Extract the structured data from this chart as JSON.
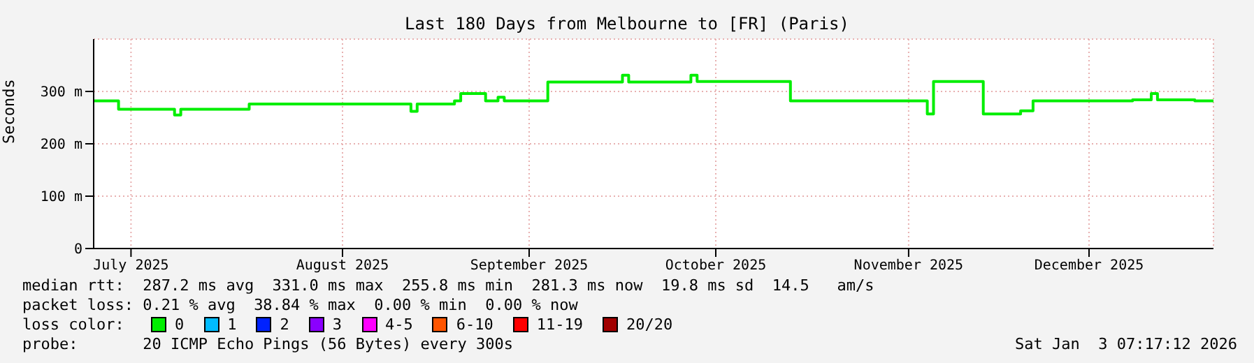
{
  "chart_data": {
    "type": "step",
    "title": "Last 180 Days from Melbourne to [FR] (Paris)",
    "ylabel": "Seconds",
    "x": [
      "2025-07-07",
      "2025-07-11",
      "2025-07-20",
      "2025-07-21",
      "2025-08-01",
      "2025-08-27",
      "2025-08-28",
      "2025-09-03",
      "2025-09-04",
      "2025-09-08",
      "2025-09-10",
      "2025-09-11",
      "2025-09-18",
      "2025-09-30",
      "2025-10-01",
      "2025-10-11",
      "2025-10-12",
      "2025-10-27",
      "2025-11-17",
      "2025-11-18",
      "2025-11-19",
      "2025-11-26",
      "2025-11-27",
      "2025-12-03",
      "2025-12-05",
      "2025-12-21",
      "2025-12-24",
      "2025-12-25",
      "2025-12-31",
      "2026-01-03"
    ],
    "series": [
      {
        "name": "0",
        "color": "#00ee00",
        "values": [
          282,
          266,
          255,
          266,
          276,
          262,
          276,
          282,
          296,
          282,
          289,
          282,
          318,
          331,
          318,
          331,
          319,
          282,
          282,
          257,
          319,
          319,
          257,
          263,
          282,
          284,
          296,
          284,
          282,
          282
        ]
      },
      {
        "name": "1",
        "color": "#00bbff",
        "values": [
          null,
          null,
          null,
          null,
          null,
          null,
          null,
          null,
          null,
          null,
          null,
          null,
          null,
          null,
          null,
          null,
          null,
          null,
          null,
          null,
          null,
          null,
          null,
          null,
          null,
          null,
          null,
          null,
          null,
          null
        ]
      },
      {
        "name": "2",
        "color": "#0022ff",
        "values": [
          null,
          null,
          null,
          null,
          null,
          null,
          null,
          null,
          null,
          null,
          null,
          null,
          null,
          null,
          null,
          null,
          null,
          null,
          null,
          null,
          null,
          null,
          null,
          null,
          null,
          null,
          null,
          null,
          null,
          null
        ]
      },
      {
        "name": "3",
        "color": "#8a00ff",
        "values": [
          null,
          null,
          null,
          null,
          null,
          null,
          null,
          null,
          null,
          null,
          null,
          null,
          null,
          null,
          null,
          null,
          null,
          null,
          null,
          null,
          null,
          null,
          null,
          null,
          null,
          null,
          null,
          null,
          null,
          null
        ]
      },
      {
        "name": "4-5",
        "color": "#ff00ff",
        "values": [
          null,
          null,
          null,
          null,
          null,
          null,
          null,
          null,
          null,
          null,
          null,
          null,
          null,
          null,
          null,
          null,
          null,
          null,
          null,
          null,
          null,
          null,
          null,
          null,
          null,
          null,
          null,
          null,
          null,
          null
        ]
      },
      {
        "name": "6-10",
        "color": "#ff5500",
        "values": [
          null,
          null,
          null,
          null,
          null,
          null,
          null,
          null,
          null,
          null,
          null,
          null,
          null,
          null,
          null,
          null,
          null,
          null,
          null,
          null,
          null,
          null,
          null,
          null,
          null,
          null,
          null,
          null,
          null,
          null
        ]
      },
      {
        "name": "11-19",
        "color": "#ff0000",
        "values": [
          null,
          null,
          null,
          null,
          null,
          null,
          null,
          null,
          null,
          null,
          null,
          null,
          null,
          null,
          null,
          null,
          null,
          null,
          null,
          null,
          null,
          null,
          null,
          null,
          null,
          null,
          null,
          null,
          null,
          null
        ]
      },
      {
        "name": "20/20",
        "color": "#a10000",
        "values": [
          null,
          null,
          null,
          null,
          null,
          null,
          null,
          null,
          null,
          null,
          null,
          null,
          null,
          null,
          null,
          null,
          null,
          null,
          null,
          null,
          null,
          null,
          null,
          null,
          null,
          null,
          null,
          null,
          null,
          null
        ]
      }
    ],
    "xlim": [
      "2025-07-07",
      "2026-01-03"
    ],
    "xticks": [
      {
        "value": "2025-07-13",
        "label": "July 2025"
      },
      {
        "value": "2025-08-16",
        "label": "August 2025"
      },
      {
        "value": "2025-09-15",
        "label": "September 2025"
      },
      {
        "value": "2025-10-15",
        "label": "October 2025"
      },
      {
        "value": "2025-11-15",
        "label": "November 2025"
      },
      {
        "value": "2025-12-14",
        "label": "December 2025"
      }
    ],
    "ylim": [
      0,
      400
    ],
    "yticks": [
      0,
      {
        "value": 100,
        "label": "100 m"
      },
      {
        "value": 200,
        "label": "200 m"
      },
      {
        "value": 300,
        "label": "300 m"
      }
    ],
    "grid": true,
    "legend": "bottom",
    "legend_title": "loss color:",
    "annotations": [
      "median rtt:  287.2 ms avg  331.0 ms max  255.8 ms min  281.3 ms now  19.8 ms sd  14.5   am/s",
      "packet loss: 0.21 % avg  38.84 % max  0.00 % min  0.00 % now",
      "probe:       20 ICMP Echo Pings (56 Bytes) every 300s",
      "Sat Jan  3 07:17:12 2026"
    ]
  }
}
